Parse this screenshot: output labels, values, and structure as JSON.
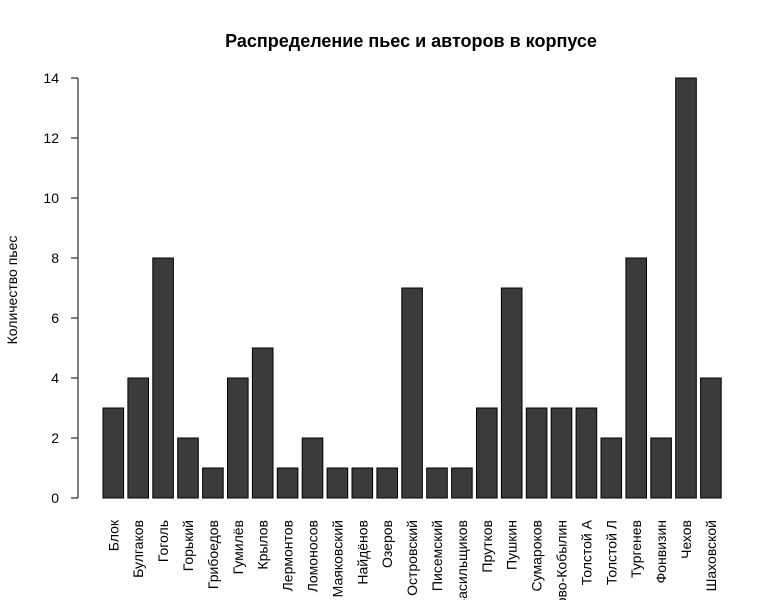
{
  "chart_data": {
    "type": "bar",
    "title": "Распределение пьес и авторов в корпусе",
    "xlabel": "",
    "ylabel": "Количество пьес",
    "ylim": [
      0,
      14
    ],
    "yticks": [
      0,
      2,
      4,
      6,
      8,
      10,
      12,
      14
    ],
    "categories": [
      "Блок",
      "Булгаков",
      "Гоголь",
      "Горький",
      "Грибоедов",
      "Гумилёв",
      "Крылов",
      "Лермонтов",
      "Ломоносов",
      "Маяковский",
      "Найдёнов",
      "Озеров",
      "Островский",
      "Писемский",
      "Васильщиков",
      "Прутков",
      "Пушкин",
      "Сумароков",
      "Сухово-Кобылин",
      "Толстой А",
      "Толстой Л",
      "Тургенев",
      "Фонвизин",
      "Чехов",
      "Шаховской"
    ],
    "values": [
      3,
      4,
      8,
      2,
      1,
      4,
      5,
      1,
      2,
      1,
      1,
      1,
      7,
      1,
      1,
      3,
      7,
      3,
      3,
      3,
      2,
      8,
      2,
      14,
      4
    ],
    "bar_color": "#3b3b3b",
    "grid": false,
    "legend": "none"
  }
}
